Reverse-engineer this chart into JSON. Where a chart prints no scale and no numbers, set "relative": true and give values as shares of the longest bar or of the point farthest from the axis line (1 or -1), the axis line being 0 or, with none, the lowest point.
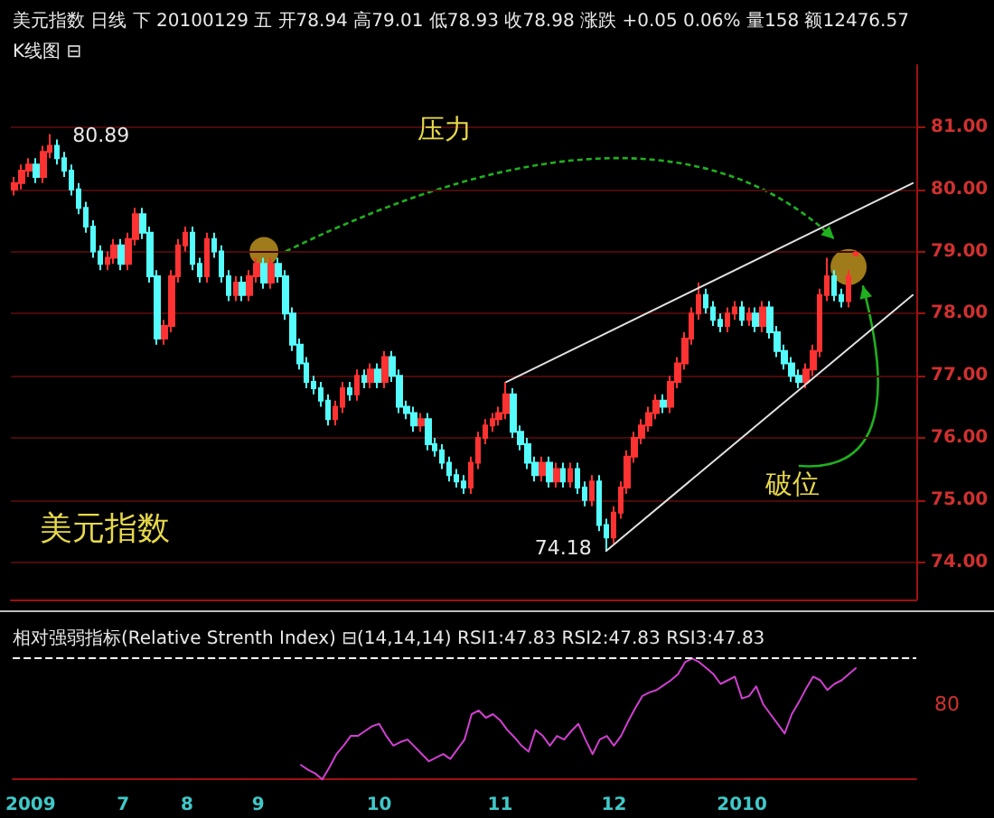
{
  "chart_data": [
    {
      "type": "candlestick",
      "title": "美元指数 日线 下 20100129 五 开78.94 高79.01 低78.93 收78.98 涨跌 +0.05 0.06% 量158 额12476.57",
      "subtitle": "K线图 ⊟",
      "categories": [
        null,
        null,
        "2009",
        null,
        null,
        null,
        null,
        null,
        null,
        null,
        null,
        null,
        null,
        null,
        null,
        "7",
        null,
        null,
        null,
        null,
        null,
        null,
        null,
        null,
        "8",
        null,
        null,
        null,
        null,
        null,
        null,
        null,
        null,
        null,
        "9",
        null,
        null,
        null,
        null,
        null,
        null,
        null,
        null,
        null,
        null,
        null,
        null,
        null,
        null,
        null,
        null,
        "10",
        null,
        null,
        null,
        null,
        null,
        null,
        null,
        null,
        null,
        null,
        null,
        null,
        null,
        null,
        null,
        null,
        "11",
        null,
        null,
        null,
        null,
        null,
        null,
        null,
        null,
        null,
        null,
        null,
        null,
        null,
        null,
        null,
        "12",
        null,
        null,
        null,
        null,
        null,
        null,
        null,
        null,
        null,
        null,
        null,
        null,
        null,
        null,
        null,
        null,
        null,
        "2010",
        null,
        null,
        null,
        null,
        null,
        null,
        null,
        null,
        null,
        null,
        null,
        null,
        null,
        null,
        null,
        null,
        null,
        null,
        null,
        null,
        null,
        null,
        null,
        null
      ],
      "ohlc": [
        [
          80.0,
          80.2,
          79.9,
          80.1
        ],
        [
          80.1,
          80.4,
          80.0,
          80.3
        ],
        [
          80.3,
          80.5,
          80.2,
          80.4
        ],
        [
          80.4,
          80.5,
          80.1,
          80.2
        ],
        [
          80.2,
          80.7,
          80.1,
          80.6
        ],
        [
          80.6,
          80.89,
          80.5,
          80.7
        ],
        [
          80.7,
          80.8,
          80.4,
          80.5
        ],
        [
          80.5,
          80.6,
          80.2,
          80.3
        ],
        [
          80.3,
          80.4,
          79.9,
          80.0
        ],
        [
          80.0,
          80.1,
          79.6,
          79.7
        ],
        [
          79.7,
          79.8,
          79.3,
          79.4
        ],
        [
          79.4,
          79.5,
          78.9,
          79.0
        ],
        [
          79.0,
          79.1,
          78.7,
          78.8
        ],
        [
          78.8,
          79.0,
          78.7,
          78.9
        ],
        [
          78.9,
          79.2,
          78.8,
          79.1
        ],
        [
          79.1,
          79.2,
          78.7,
          78.8
        ],
        [
          78.8,
          79.3,
          78.7,
          79.2
        ],
        [
          79.2,
          79.7,
          79.1,
          79.6
        ],
        [
          79.6,
          79.7,
          79.2,
          79.3
        ],
        [
          79.3,
          79.4,
          78.5,
          78.6
        ],
        [
          78.6,
          78.7,
          77.5,
          77.6
        ],
        [
          77.6,
          77.9,
          77.5,
          77.8
        ],
        [
          77.8,
          78.7,
          77.7,
          78.6
        ],
        [
          78.6,
          79.2,
          78.5,
          79.1
        ],
        [
          79.1,
          79.4,
          79.0,
          79.3
        ],
        [
          79.3,
          79.4,
          78.7,
          78.8
        ],
        [
          78.8,
          78.9,
          78.5,
          78.6
        ],
        [
          78.6,
          79.3,
          78.5,
          79.2
        ],
        [
          79.2,
          79.3,
          78.9,
          79.0
        ],
        [
          79.0,
          79.1,
          78.5,
          78.6
        ],
        [
          78.6,
          78.7,
          78.2,
          78.3
        ],
        [
          78.3,
          78.6,
          78.2,
          78.5
        ],
        [
          78.5,
          78.6,
          78.2,
          78.3
        ],
        [
          78.3,
          78.7,
          78.2,
          78.6
        ],
        [
          78.6,
          78.9,
          78.5,
          78.8
        ],
        [
          78.8,
          78.9,
          78.4,
          78.5
        ],
        [
          78.5,
          78.9,
          78.4,
          78.8
        ],
        [
          78.8,
          78.9,
          78.5,
          78.6
        ],
        [
          78.6,
          78.7,
          77.9,
          78.0
        ],
        [
          78.0,
          78.1,
          77.4,
          77.5
        ],
        [
          77.5,
          77.6,
          77.1,
          77.2
        ],
        [
          77.2,
          77.3,
          76.8,
          76.9
        ],
        [
          76.9,
          77.0,
          76.7,
          76.8
        ],
        [
          76.8,
          76.9,
          76.5,
          76.6
        ],
        [
          76.6,
          76.7,
          76.2,
          76.3
        ],
        [
          76.3,
          76.6,
          76.2,
          76.5
        ],
        [
          76.5,
          76.9,
          76.4,
          76.8
        ],
        [
          76.8,
          76.9,
          76.6,
          76.7
        ],
        [
          76.7,
          77.1,
          76.6,
          77.0
        ],
        [
          77.0,
          77.1,
          76.8,
          76.9
        ],
        [
          76.9,
          77.2,
          76.8,
          77.1
        ],
        [
          77.1,
          77.2,
          76.8,
          76.9
        ],
        [
          76.9,
          77.4,
          76.8,
          77.3
        ],
        [
          77.3,
          77.4,
          76.9,
          77.0
        ],
        [
          77.0,
          77.1,
          76.4,
          76.5
        ],
        [
          76.5,
          76.6,
          76.3,
          76.4
        ],
        [
          76.4,
          76.5,
          76.1,
          76.2
        ],
        [
          76.2,
          76.4,
          76.1,
          76.3
        ],
        [
          76.3,
          76.4,
          75.8,
          75.9
        ],
        [
          75.9,
          76.0,
          75.7,
          75.8
        ],
        [
          75.8,
          75.9,
          75.5,
          75.6
        ],
        [
          75.6,
          75.7,
          75.3,
          75.4
        ],
        [
          75.4,
          75.5,
          75.2,
          75.3
        ],
        [
          75.3,
          75.4,
          75.1,
          75.2
        ],
        [
          75.2,
          75.7,
          75.1,
          75.6
        ],
        [
          75.6,
          76.1,
          75.5,
          76.0
        ],
        [
          76.0,
          76.3,
          75.9,
          76.2
        ],
        [
          76.2,
          76.4,
          76.1,
          76.3
        ],
        [
          76.3,
          76.5,
          76.2,
          76.4
        ],
        [
          76.4,
          76.9,
          76.3,
          76.7
        ],
        [
          76.7,
          76.8,
          76.0,
          76.1
        ],
        [
          76.1,
          76.2,
          75.8,
          75.9
        ],
        [
          75.9,
          76.0,
          75.5,
          75.6
        ],
        [
          75.6,
          75.7,
          75.3,
          75.4
        ],
        [
          75.4,
          75.7,
          75.3,
          75.6
        ],
        [
          75.6,
          75.7,
          75.2,
          75.3
        ],
        [
          75.3,
          75.6,
          75.2,
          75.5
        ],
        [
          75.5,
          75.6,
          75.2,
          75.3
        ],
        [
          75.3,
          75.6,
          75.2,
          75.5
        ],
        [
          75.5,
          75.6,
          75.1,
          75.2
        ],
        [
          75.2,
          75.3,
          74.9,
          75.0
        ],
        [
          75.0,
          75.4,
          74.9,
          75.3
        ],
        [
          75.3,
          75.4,
          74.5,
          74.6
        ],
        [
          74.6,
          74.7,
          74.18,
          74.4
        ],
        [
          74.4,
          74.9,
          74.3,
          74.8
        ],
        [
          74.8,
          75.3,
          74.7,
          75.2
        ],
        [
          75.2,
          75.8,
          75.1,
          75.7
        ],
        [
          75.7,
          76.1,
          75.6,
          76.0
        ],
        [
          76.0,
          76.3,
          75.9,
          76.2
        ],
        [
          76.2,
          76.5,
          76.1,
          76.4
        ],
        [
          76.4,
          76.7,
          76.3,
          76.6
        ],
        [
          76.6,
          76.7,
          76.4,
          76.5
        ],
        [
          76.5,
          77.0,
          76.4,
          76.9
        ],
        [
          76.9,
          77.3,
          76.8,
          77.2
        ],
        [
          77.2,
          77.7,
          77.1,
          77.6
        ],
        [
          77.6,
          78.1,
          77.5,
          78.0
        ],
        [
          78.0,
          78.5,
          77.9,
          78.3
        ],
        [
          78.3,
          78.4,
          78.0,
          78.1
        ],
        [
          78.1,
          78.2,
          77.8,
          77.9
        ],
        [
          77.9,
          78.0,
          77.7,
          77.8
        ],
        [
          77.8,
          78.1,
          77.7,
          78.0
        ],
        [
          78.0,
          78.2,
          77.9,
          78.1
        ],
        [
          78.1,
          78.2,
          77.8,
          77.9
        ],
        [
          77.9,
          78.1,
          77.8,
          78.0
        ],
        [
          78.0,
          78.1,
          77.7,
          77.8
        ],
        [
          77.8,
          78.2,
          77.7,
          78.1
        ],
        [
          78.1,
          78.2,
          77.6,
          77.7
        ],
        [
          77.7,
          77.8,
          77.3,
          77.4
        ],
        [
          77.4,
          77.5,
          77.1,
          77.2
        ],
        [
          77.2,
          77.3,
          76.9,
          77.0
        ],
        [
          77.0,
          77.1,
          76.8,
          76.9
        ],
        [
          76.9,
          77.2,
          76.8,
          77.1
        ],
        [
          77.1,
          77.5,
          77.0,
          77.4
        ],
        [
          77.4,
          78.4,
          77.3,
          78.3
        ],
        [
          78.3,
          78.9,
          78.2,
          78.6
        ],
        [
          78.6,
          78.7,
          78.2,
          78.3
        ],
        [
          78.3,
          78.4,
          78.1,
          78.2
        ],
        [
          78.2,
          78.7,
          78.1,
          78.6
        ],
        [
          78.94,
          79.01,
          78.93,
          78.98
        ],
        null,
        null,
        null,
        null,
        null,
        null,
        null,
        null
      ],
      "colors": [
        "#ff3232",
        "#ff3232",
        "#ff3232",
        "#54fcfc",
        "#ff3232",
        "#ff3232",
        "#54fcfc",
        "#54fcfc",
        "#54fcfc",
        "#54fcfc",
        "#54fcfc",
        "#54fcfc",
        "#54fcfc",
        "#ff3232",
        "#ff3232",
        "#54fcfc",
        "#ff3232",
        "#ff3232",
        "#54fcfc",
        "#54fcfc",
        "#54fcfc",
        "#ff3232",
        "#ff3232",
        "#ff3232",
        "#ff3232",
        "#54fcfc",
        "#54fcfc",
        "#ff3232",
        "#54fcfc",
        "#54fcfc",
        "#54fcfc",
        "#ff3232",
        "#54fcfc",
        "#ff3232",
        "#ff3232",
        "#54fcfc",
        "#ff3232",
        "#54fcfc",
        "#54fcfc",
        "#54fcfc",
        "#54fcfc",
        "#54fcfc",
        "#54fcfc",
        "#54fcfc",
        "#54fcfc",
        "#ff3232",
        "#ff3232",
        "#54fcfc",
        "#ff3232",
        "#54fcfc",
        "#ff3232",
        "#54fcfc",
        "#ff3232",
        "#54fcfc",
        "#54fcfc",
        "#54fcfc",
        "#54fcfc",
        "#ff3232",
        "#54fcfc",
        "#54fcfc",
        "#54fcfc",
        "#54fcfc",
        "#54fcfc",
        "#54fcfc",
        "#ff3232",
        "#ff3232",
        "#ff3232",
        "#ff3232",
        "#ff3232",
        "#ff3232",
        "#54fcfc",
        "#54fcfc",
        "#54fcfc",
        "#54fcfc",
        "#ff3232",
        "#54fcfc",
        "#ff3232",
        "#54fcfc",
        "#ff3232",
        "#54fcfc",
        "#54fcfc",
        "#ff3232",
        "#54fcfc",
        "#54fcfc",
        "#ff3232",
        "#ff3232",
        "#ff3232",
        "#ff3232",
        "#ff3232",
        "#ff3232",
        "#ff3232",
        "#54fcfc",
        "#ff3232",
        "#ff3232",
        "#ff3232",
        "#ff3232",
        "#ff3232",
        "#54fcfc",
        "#54fcfc",
        "#54fcfc",
        "#ff3232",
        "#ff3232",
        "#54fcfc",
        "#ff3232",
        "#54fcfc",
        "#ff3232",
        "#54fcfc",
        "#54fcfc",
        "#54fcfc",
        "#54fcfc",
        "#54fcfc",
        "#ff3232",
        "#ff3232",
        "#ff3232",
        "#ff3232",
        "#54fcfc",
        "#54fcfc",
        "#ff3232",
        "#ff3232",
        null,
        null,
        null,
        null,
        null,
        null,
        null,
        null
      ],
      "series": [
        {
          "type": "line",
          "color": "#e0e0e0",
          "values": [
            null,
            null,
            null,
            null,
            null,
            null,
            null,
            null,
            null,
            null,
            null,
            null,
            null,
            null,
            null,
            null,
            null,
            null,
            null,
            null,
            null,
            null,
            null,
            null,
            null,
            null,
            null,
            null,
            null,
            null,
            null,
            null,
            null,
            null,
            null,
            null,
            null,
            null,
            null,
            null,
            null,
            null,
            null,
            null,
            null,
            null,
            null,
            null,
            null,
            null,
            null,
            null,
            null,
            null,
            null,
            null,
            null,
            null,
            null,
            null,
            null,
            null,
            null,
            null,
            null,
            null,
            null,
            null,
            null,
            76.9,
            null,
            null,
            null,
            null,
            null,
            null,
            null,
            null,
            null,
            null,
            null,
            null,
            null,
            null,
            null,
            null,
            null,
            null,
            null,
            null,
            null,
            null,
            null,
            null,
            null,
            null,
            null,
            null,
            null,
            null,
            null,
            null,
            null,
            null,
            null,
            null,
            null,
            null,
            null,
            null,
            null,
            null,
            null,
            null,
            null,
            null,
            null,
            null,
            null,
            null,
            null,
            null,
            null,
            null,
            null,
            null,
            80.1
          ]
        },
        {
          "type": "line",
          "color": "#e0e0e0",
          "values": [
            null,
            null,
            null,
            null,
            null,
            null,
            null,
            null,
            null,
            null,
            null,
            null,
            null,
            null,
            null,
            null,
            null,
            null,
            null,
            null,
            null,
            null,
            null,
            null,
            null,
            null,
            null,
            null,
            null,
            null,
            null,
            null,
            null,
            null,
            null,
            null,
            null,
            null,
            null,
            null,
            null,
            null,
            null,
            null,
            null,
            null,
            null,
            null,
            null,
            null,
            null,
            null,
            null,
            null,
            null,
            null,
            null,
            null,
            null,
            null,
            null,
            null,
            null,
            null,
            null,
            null,
            null,
            null,
            null,
            null,
            null,
            null,
            null,
            null,
            null,
            null,
            null,
            null,
            null,
            null,
            null,
            null,
            null,
            74.18,
            null,
            null,
            null,
            null,
            null,
            null,
            null,
            null,
            null,
            null,
            null,
            null,
            null,
            null,
            null,
            null,
            null,
            null,
            null,
            null,
            null,
            null,
            null,
            null,
            null,
            null,
            null,
            null,
            null,
            null,
            null,
            null,
            null,
            null,
            null,
            null,
            null,
            null,
            null,
            null,
            null,
            null,
            78.3
          ]
        }
      ],
      "ylim": [
        73.4,
        82
      ],
      "yticks": [
        {
          "value": 74,
          "label": "74.00"
        },
        {
          "value": 75,
          "label": "75.00"
        },
        {
          "value": 76,
          "label": "76.00"
        },
        {
          "value": 77,
          "label": "77.00"
        },
        {
          "value": 78,
          "label": "78.00"
        },
        {
          "value": 79,
          "label": "79.00"
        },
        {
          "value": 80,
          "label": "80.00"
        },
        {
          "value": 81,
          "label": "81.00"
        }
      ],
      "grid": "y",
      "tick_labels": "y",
      "marker": "none",
      "annotations": [
        "80.89",
        "74.18",
        "压力",
        "破位",
        "美元指数"
      ]
    },
    {
      "type": "line",
      "title": "相对强弱指标(Relative Strenth Index) ⊟(14,14,14) RSI1:47.83 RSI2:47.83 RSI3:47.83",
      "relative": true,
      "categories": [
        null,
        null,
        "2009",
        null,
        null,
        null,
        null,
        null,
        null,
        null,
        null,
        null,
        null,
        null,
        null,
        "7",
        null,
        null,
        null,
        null,
        null,
        null,
        null,
        null,
        "8",
        null,
        null,
        null,
        null,
        null,
        null,
        null,
        null,
        null,
        "9",
        null,
        null,
        null,
        null,
        null,
        null,
        null,
        null,
        null,
        null,
        null,
        null,
        null,
        null,
        null,
        null,
        "10",
        null,
        null,
        null,
        null,
        null,
        null,
        null,
        null,
        null,
        null,
        null,
        null,
        null,
        null,
        null,
        null,
        "11",
        null,
        null,
        null,
        null,
        null,
        null,
        null,
        null,
        null,
        null,
        null,
        null,
        null,
        null,
        null,
        "12",
        null,
        null,
        null,
        null,
        null,
        null,
        null,
        null,
        null,
        null,
        null,
        null,
        null,
        null,
        null,
        null,
        null,
        "2010",
        null,
        null,
        null,
        null,
        null,
        null,
        null,
        null,
        null,
        null,
        null,
        null,
        null,
        null,
        null,
        null,
        null,
        null,
        null,
        null,
        null,
        null,
        null,
        null
      ],
      "series": [
        {
          "color": "#d040d0",
          "values": [
            null,
            null,
            null,
            null,
            null,
            null,
            null,
            null,
            null,
            null,
            null,
            null,
            null,
            null,
            null,
            null,
            null,
            null,
            null,
            null,
            null,
            null,
            null,
            null,
            null,
            null,
            null,
            null,
            null,
            null,
            null,
            null,
            null,
            null,
            null,
            null,
            null,
            null,
            null,
            null,
            0.12,
            0.08,
            0.05,
            0,
            0.1,
            0.21,
            0.28,
            0.36,
            0.36,
            0.4,
            0.44,
            0.46,
            0.36,
            0.28,
            0.31,
            0.33,
            0.27,
            0.21,
            0.15,
            0.18,
            0.21,
            0.17,
            0.25,
            0.33,
            0.54,
            0.57,
            0.51,
            0.54,
            0.49,
            0.41,
            0.35,
            0.28,
            0.23,
            0.41,
            0.36,
            0.28,
            0.36,
            0.33,
            0.4,
            0.46,
            0.33,
            0.21,
            0.33,
            0.36,
            0.28,
            0.36,
            0.48,
            0.59,
            0.69,
            0.72,
            0.74,
            0.78,
            0.82,
            0.87,
            0.97,
            1,
            0.97,
            0.92,
            0.87,
            0.79,
            0.82,
            0.85,
            0.67,
            0.69,
            0.77,
            0.62,
            0.54,
            0.46,
            0.38,
            0.54,
            0.64,
            0.75,
            0.85,
            0.82,
            0.74,
            0.79,
            0.82,
            0.87,
            0.92,
            null,
            null,
            null,
            null,
            null,
            null,
            null,
            null
          ]
        }
      ],
      "ref_lines": [
        {
          "axis": "y",
          "value": 1,
          "line_style": "dashed",
          "color": "#ffffff"
        }
      ],
      "tick_labels": "x",
      "marker": "none",
      "annotations": [
        "80"
      ]
    }
  ]
}
